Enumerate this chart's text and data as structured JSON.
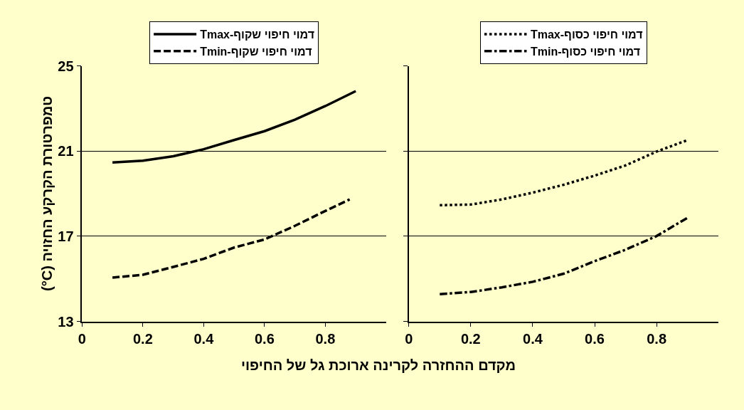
{
  "chart_data": [
    {
      "type": "line",
      "xlabel": "מקדם ההחזרה לקרינה ארוכת גל של החיפוי",
      "ylabel": "טמפרטורת הקרקע החזויה (°C)",
      "xlim": [
        0,
        1
      ],
      "xticks": [
        0,
        0.2,
        0.4,
        0.6,
        0.8
      ],
      "ylim": [
        13,
        25
      ],
      "yticks": [
        13,
        17,
        21,
        25
      ],
      "grid": "y",
      "legend": "top",
      "series": [
        {
          "name": "דמוי חיפוי שקוף-Tmax",
          "color": "#000000",
          "line_style": "solid",
          "x": [
            0.1,
            0.2,
            0.3,
            0.4,
            0.5,
            0.6,
            0.7,
            0.8,
            0.9
          ],
          "values": [
            20.47,
            20.55,
            20.76,
            21.09,
            21.52,
            21.94,
            22.48,
            23.12,
            23.82
          ]
        },
        {
          "name": "דמוי חיפוי שקוף-Tmin",
          "color": "#000000",
          "line_style": "dashed",
          "x": [
            0.1,
            0.2,
            0.3,
            0.4,
            0.5,
            0.6,
            0.7,
            0.8,
            0.88
          ],
          "values": [
            15.06,
            15.19,
            15.56,
            15.94,
            16.47,
            16.85,
            17.49,
            18.19,
            18.73
          ]
        }
      ]
    },
    {
      "type": "line",
      "xlim": [
        0,
        1
      ],
      "xticks": [
        0,
        0.2,
        0.4,
        0.6,
        0.8
      ],
      "ylim": [
        13,
        25
      ],
      "yticks": [
        13,
        17,
        21,
        25
      ],
      "grid": "y",
      "legend": "top",
      "tick_labels": "x",
      "series": [
        {
          "name": "דמוי חיפוי כסוף-Tmax",
          "color": "#000000",
          "line_style": "dotted",
          "x": [
            0.1,
            0.2,
            0.3,
            0.4,
            0.5,
            0.6,
            0.7,
            0.8,
            0.9
          ],
          "values": [
            18.46,
            18.49,
            18.73,
            19.05,
            19.42,
            19.85,
            20.33,
            20.98,
            21.52
          ]
        },
        {
          "name": "דמוי חיפוי כסוף-Tmin",
          "color": "#000000",
          "line_style": "dashdot",
          "x": [
            0.1,
            0.2,
            0.3,
            0.4,
            0.5,
            0.6,
            0.7,
            0.8,
            0.9
          ],
          "values": [
            14.28,
            14.38,
            14.6,
            14.86,
            15.24,
            15.83,
            16.37,
            17.01,
            17.87
          ]
        }
      ]
    }
  ]
}
